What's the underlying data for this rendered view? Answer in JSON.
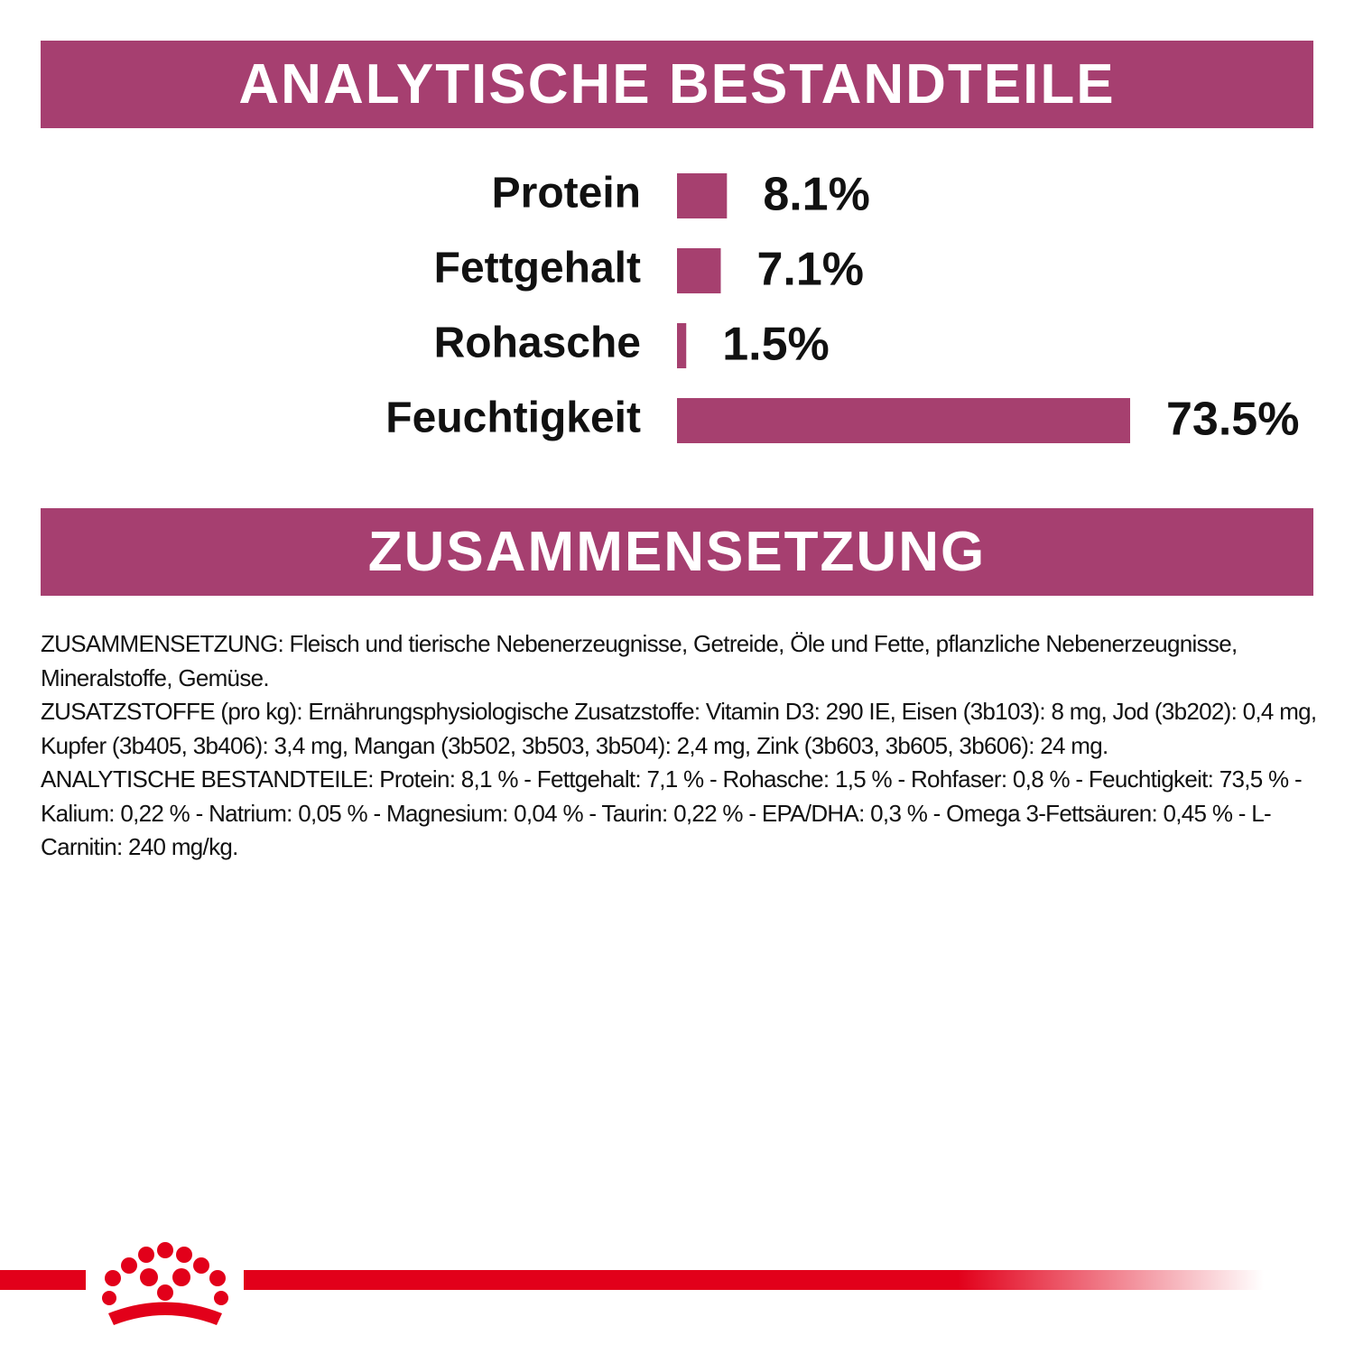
{
  "chart_data": {
    "type": "bar",
    "orientation": "horizontal",
    "title": "ANALYTISCHE BESTANDTEILE",
    "categories": [
      "Protein",
      "Fettgehalt",
      "Rohasche",
      "Feuchtigkeit"
    ],
    "values": [
      8.1,
      7.1,
      1.5,
      73.5
    ],
    "value_labels": [
      "8.1%",
      "7.1%",
      "1.5%",
      "73.5%"
    ],
    "color": "#a6406f"
  },
  "section": {
    "title": "ZUSAMMENSETZUNG",
    "paragraphs": [
      "ZUSAMMENSETZUNG: Fleisch und tierische Nebenerzeugnisse, Getreide, Öle und Fette, pflanzliche Nebenerzeugnisse, Mineralstoffe, Gemüse.",
      "ZUSATZSTOFFE (pro kg): Ernährungsphysiologische Zusatzstoffe: Vitamin D3: 290 IE, Eisen (3b103): 8 mg, Jod (3b202): 0,4 mg, Kupfer (3b405, 3b406): 3,4 mg, Mangan (3b502, 3b503, 3b504): 2,4 mg, Zink (3b603, 3b605, 3b606): 24 mg.",
      "ANALYTISCHE BESTANDTEILE: Protein: 8,1 % - Fettgehalt: 7,1 % - Rohasche: 1,5 % - Rohfaser: 0,8 % - Feuchtigkeit: 73,5 % - Kalium: 0,22 % - Natrium: 0,05 % - Magnesium: 0,04 % - Taurin: 0,22 % - EPA/DHA: 0,3 % - Omega 3-Fettsäuren: 0,45 % - L-Carnitin: 240 mg/kg."
    ]
  }
}
